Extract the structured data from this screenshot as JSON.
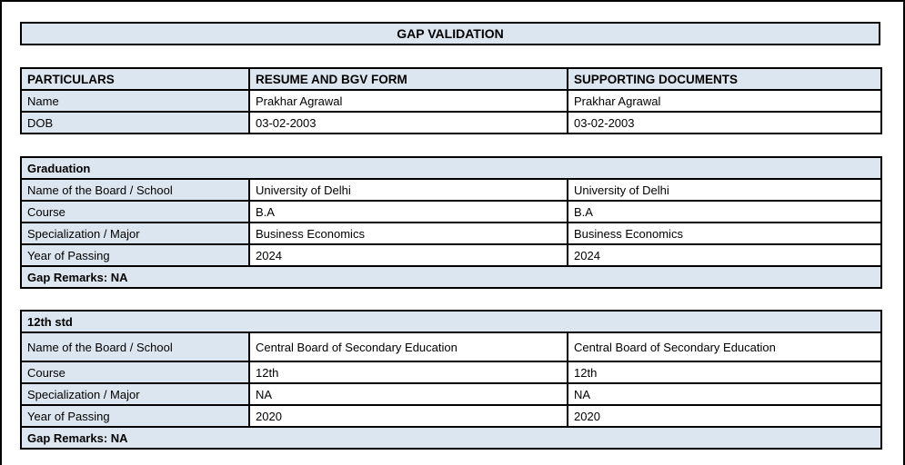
{
  "title": "GAP VALIDATION",
  "colors": {
    "header_fill": "#dce6f1",
    "border": "#000000",
    "background": "#ffffff",
    "text": "#000000"
  },
  "info_table": {
    "headers": [
      "PARTICULARS",
      "RESUME AND BGV FORM",
      "SUPPORTING DOCUMENTS"
    ],
    "rows": [
      {
        "label": "Name",
        "resume": "Prakhar Agrawal",
        "supporting": "Prakhar Agrawal"
      },
      {
        "label": "DOB",
        "resume": "03-02-2003",
        "supporting": "03-02-2003"
      }
    ]
  },
  "sections": [
    {
      "title": "Graduation",
      "rows": [
        {
          "label": "Name of the Board / School",
          "resume": "University of Delhi",
          "supporting": "University of Delhi"
        },
        {
          "label": "Course",
          "resume": "B.A",
          "supporting": "B.A"
        },
        {
          "label": "Specialization / Major",
          "resume": "Business Economics",
          "supporting": "Business Economics"
        },
        {
          "label": "Year of Passing",
          "resume": "2024",
          "supporting": "2024"
        }
      ],
      "remarks": "Gap Remarks: NA"
    },
    {
      "title": "12th std",
      "rows": [
        {
          "label": "Name of the Board / School",
          "resume": "Central Board of Secondary Education",
          "supporting": "Central Board of Secondary Education"
        },
        {
          "label": "Course",
          "resume": "12th",
          "supporting": "12th"
        },
        {
          "label": "Specialization / Major",
          "resume": "NA",
          "supporting": "NA"
        },
        {
          "label": "Year of Passing",
          "resume": "2020",
          "supporting": "2020"
        }
      ],
      "remarks": "Gap Remarks: NA"
    }
  ]
}
